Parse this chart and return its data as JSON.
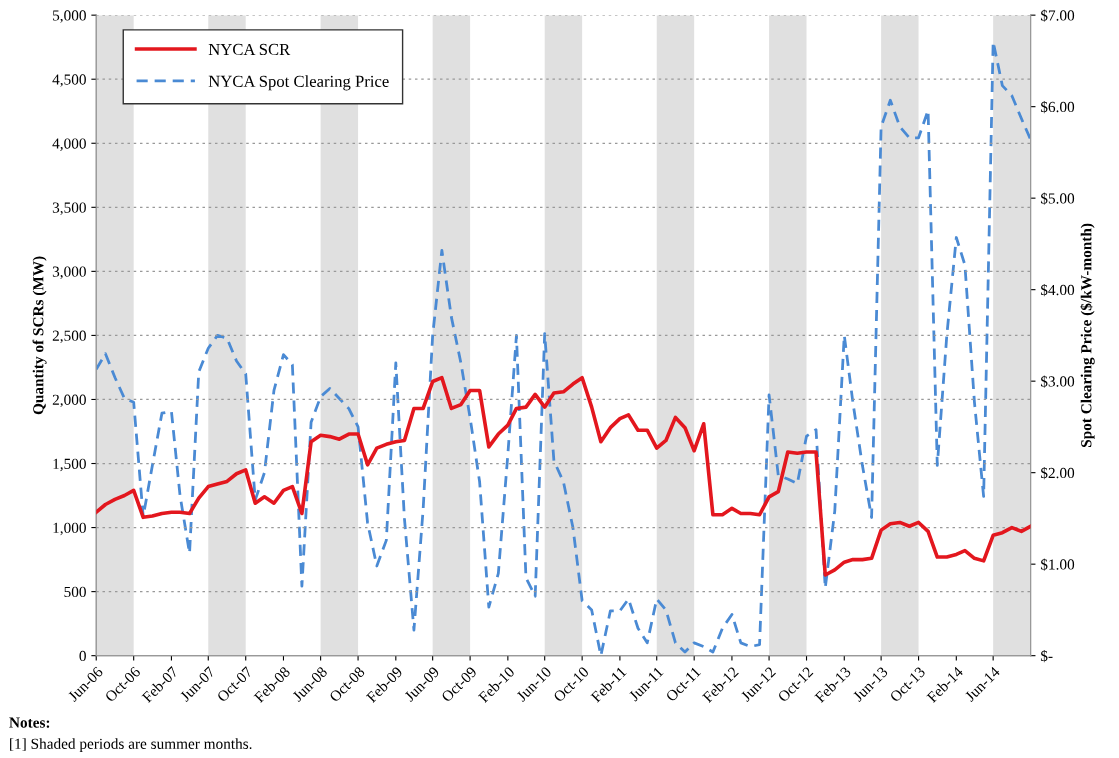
{
  "chart_data": {
    "type": "line",
    "x": [
      "2006-06",
      "2006-07",
      "2006-08",
      "2006-09",
      "2006-10",
      "2006-11",
      "2006-12",
      "2007-01",
      "2007-02",
      "2007-03",
      "2007-04",
      "2007-05",
      "2007-06",
      "2007-07",
      "2007-08",
      "2007-09",
      "2007-10",
      "2007-11",
      "2007-12",
      "2008-01",
      "2008-02",
      "2008-03",
      "2008-04",
      "2008-05",
      "2008-06",
      "2008-07",
      "2008-08",
      "2008-09",
      "2008-10",
      "2008-11",
      "2008-12",
      "2009-01",
      "2009-02",
      "2009-03",
      "2009-04",
      "2009-05",
      "2009-06",
      "2009-07",
      "2009-08",
      "2009-09",
      "2009-10",
      "2009-11",
      "2009-12",
      "2010-01",
      "2010-02",
      "2010-03",
      "2010-04",
      "2010-05",
      "2010-06",
      "2010-07",
      "2010-08",
      "2010-09",
      "2010-10",
      "2010-11",
      "2010-12",
      "2011-01",
      "2011-02",
      "2011-03",
      "2011-04",
      "2011-05",
      "2011-06",
      "2011-07",
      "2011-08",
      "2011-09",
      "2011-10",
      "2011-11",
      "2011-12",
      "2012-01",
      "2012-02",
      "2012-03",
      "2012-04",
      "2012-05",
      "2012-06",
      "2012-07",
      "2012-08",
      "2012-09",
      "2012-10",
      "2012-11",
      "2012-12",
      "2013-01",
      "2013-02",
      "2013-03",
      "2013-04",
      "2013-05",
      "2013-06",
      "2013-07",
      "2013-08",
      "2013-09",
      "2013-10",
      "2013-11",
      "2013-12",
      "2014-01",
      "2014-02",
      "2014-03",
      "2014-04",
      "2014-05",
      "2014-06",
      "2014-07",
      "2014-08",
      "2014-09",
      "2014-10"
    ],
    "series": [
      {
        "name": "NYCA SCR",
        "color": "#e3171e",
        "line_style": "solid",
        "values": [
          1120,
          1180,
          1220,
          1250,
          1290,
          1080,
          1090,
          1110,
          1120,
          1120,
          1110,
          1230,
          1320,
          1340,
          1360,
          1420,
          1450,
          1190,
          1240,
          1190,
          1290,
          1320,
          1110,
          1670,
          1720,
          1710,
          1690,
          1730,
          1730,
          1490,
          1620,
          1650,
          1670,
          1680,
          1930,
          1930,
          2140,
          2170,
          1930,
          1960,
          2070,
          2070,
          1630,
          1730,
          1800,
          1930,
          1940,
          2040,
          1940,
          2050,
          2060,
          2120,
          2170,
          1940,
          1670,
          1780,
          1850,
          1880,
          1760,
          1760,
          1620,
          1680,
          1860,
          1780,
          1600,
          1810,
          1100,
          1100,
          1150,
          1110,
          1110,
          1100,
          1240,
          1280,
          1590,
          1580,
          1590,
          1590,
          630,
          670,
          730,
          750,
          750,
          760,
          980,
          1030,
          1040,
          1010,
          1040,
          970,
          770,
          770,
          790,
          820,
          760,
          740,
          940,
          960,
          1000,
          970,
          1010
        ]
      },
      {
        "name": "NYCA Spot Clearing Price",
        "color": "#4a8ad4",
        "line_style": "dashed",
        "axis": "y2",
        "values": [
          3.13,
          3.3,
          3.04,
          2.81,
          2.77,
          1.52,
          2.08,
          2.65,
          2.67,
          1.75,
          1.12,
          3.1,
          3.36,
          3.5,
          3.47,
          3.22,
          3.08,
          1.7,
          2.0,
          2.9,
          3.29,
          3.18,
          0.76,
          2.55,
          2.83,
          2.92,
          2.81,
          2.7,
          2.5,
          1.45,
          0.98,
          1.26,
          3.2,
          1.5,
          0.28,
          1.6,
          3.5,
          4.43,
          3.7,
          3.2,
          2.6,
          1.9,
          0.53,
          0.9,
          2.2,
          3.5,
          0.85,
          0.65,
          3.52,
          2.13,
          1.9,
          1.4,
          0.6,
          0.5,
          0.0,
          0.49,
          0.49,
          0.62,
          0.3,
          0.14,
          0.62,
          0.5,
          0.14,
          0.04,
          0.14,
          0.1,
          0.04,
          0.3,
          0.45,
          0.14,
          0.1,
          0.12,
          2.85,
          1.97,
          1.93,
          1.88,
          2.4,
          2.47,
          0.74,
          1.58,
          3.5,
          2.77,
          2.08,
          1.51,
          5.78,
          6.07,
          5.78,
          5.66,
          5.66,
          5.96,
          2.08,
          3.5,
          4.57,
          4.27,
          2.77,
          1.74,
          6.71,
          6.23,
          6.12,
          5.87,
          5.64
        ]
      }
    ],
    "ylabel": "Quantity of SCRs (MW)",
    "y2label": "Spot Clearing Price ($/kW-month)",
    "xlim": [
      "2006-06",
      "2014-10"
    ],
    "xticks": [
      {
        "value": "2006-06",
        "label": "Jun-06"
      },
      {
        "value": "2006-10",
        "label": "Oct-06"
      },
      {
        "value": "2007-02",
        "label": "Feb-07"
      },
      {
        "value": "2007-06",
        "label": "Jun-07"
      },
      {
        "value": "2007-10",
        "label": "Oct-07"
      },
      {
        "value": "2008-02",
        "label": "Feb-08"
      },
      {
        "value": "2008-06",
        "label": "Jun-08"
      },
      {
        "value": "2008-10",
        "label": "Oct-08"
      },
      {
        "value": "2009-02",
        "label": "Feb-09"
      },
      {
        "value": "2009-06",
        "label": "Jun-09"
      },
      {
        "value": "2009-10",
        "label": "Oct-09"
      },
      {
        "value": "2010-02",
        "label": "Feb-10"
      },
      {
        "value": "2010-06",
        "label": "Jun-10"
      },
      {
        "value": "2010-10",
        "label": "Oct-10"
      },
      {
        "value": "2011-02",
        "label": "Feb-11"
      },
      {
        "value": "2011-06",
        "label": "Jun-11"
      },
      {
        "value": "2011-10",
        "label": "Oct-11"
      },
      {
        "value": "2012-02",
        "label": "Feb-12"
      },
      {
        "value": "2012-06",
        "label": "Jun-12"
      },
      {
        "value": "2012-10",
        "label": "Oct-12"
      },
      {
        "value": "2013-02",
        "label": "Feb-13"
      },
      {
        "value": "2013-06",
        "label": "Jun-13"
      },
      {
        "value": "2013-10",
        "label": "Oct-13"
      },
      {
        "value": "2014-02",
        "label": "Feb-14"
      },
      {
        "value": "2014-06",
        "label": "Jun-14"
      }
    ],
    "ylim": [
      0,
      5000
    ],
    "yticks": [
      0,
      500,
      {
        "value": 1000,
        "label": "1,000"
      },
      {
        "value": 1500,
        "label": "1,500"
      },
      {
        "value": 2000,
        "label": "2,000"
      },
      {
        "value": 2500,
        "label": "2,500"
      },
      {
        "value": 3000,
        "label": "3,000"
      },
      {
        "value": 3500,
        "label": "3,500"
      },
      {
        "value": 4000,
        "label": "4,000"
      },
      {
        "value": 4500,
        "label": "4,500"
      },
      {
        "value": 5000,
        "label": "5,000"
      }
    ],
    "y2lim": [
      0,
      7
    ],
    "y2ticks": [
      {
        "value": 0,
        "label": "$-"
      },
      {
        "value": 1,
        "label": "$1.00"
      },
      {
        "value": 2,
        "label": "$2.00"
      },
      {
        "value": 3,
        "label": "$3.00"
      },
      {
        "value": 4,
        "label": "$4.00"
      },
      {
        "value": 5,
        "label": "$5.00"
      },
      {
        "value": 6,
        "label": "$6.00"
      },
      {
        "value": 7,
        "label": "$7.00"
      }
    ],
    "bands": [
      {
        "axis": "x",
        "from": "2006-06",
        "to": "2006-10",
        "color": "#e0e0e0"
      },
      {
        "axis": "x",
        "from": "2007-06",
        "to": "2007-10",
        "color": "#e0e0e0"
      },
      {
        "axis": "x",
        "from": "2008-06",
        "to": "2008-10",
        "color": "#e0e0e0"
      },
      {
        "axis": "x",
        "from": "2009-06",
        "to": "2009-10",
        "color": "#e0e0e0"
      },
      {
        "axis": "x",
        "from": "2010-06",
        "to": "2010-10",
        "color": "#e0e0e0"
      },
      {
        "axis": "x",
        "from": "2011-06",
        "to": "2011-10",
        "color": "#e0e0e0"
      },
      {
        "axis": "x",
        "from": "2012-06",
        "to": "2012-10",
        "color": "#e0e0e0"
      },
      {
        "axis": "x",
        "from": "2013-06",
        "to": "2013-10",
        "color": "#e0e0e0"
      },
      {
        "axis": "x",
        "from": "2014-06",
        "to": "2014-10",
        "color": "#e0e0e0"
      }
    ],
    "grid": "y",
    "legend": "top left",
    "annotations": [
      "Notes:",
      "[1] Shaded periods are summer months."
    ]
  }
}
